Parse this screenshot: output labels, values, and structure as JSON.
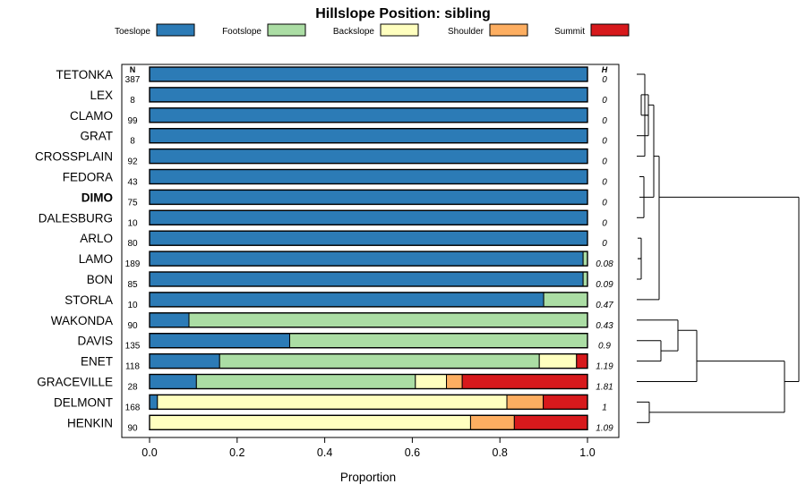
{
  "chart_data": {
    "type": "bar",
    "stacked": true,
    "orientation": "horizontal",
    "title": "Hillslope Position: sibling",
    "xlabel": "Proportion",
    "xlim": [
      0,
      1
    ],
    "xticks": [
      "0.0",
      "0.2",
      "0.4",
      "0.6",
      "0.8",
      "1.0"
    ],
    "n_header": "N",
    "h_header": "H",
    "legend": [
      {
        "name": "Toeslope",
        "color": "#2C7BB6"
      },
      {
        "name": "Footslope",
        "color": "#ABDDA4"
      },
      {
        "name": "Backslope",
        "color": "#FFFFBF"
      },
      {
        "name": "Shoulder",
        "color": "#FDAE61"
      },
      {
        "name": "Summit",
        "color": "#D7191C"
      }
    ],
    "rows": [
      {
        "label": "TETONKA",
        "n": "387",
        "h": "0",
        "bold": false,
        "values": [
          1,
          0,
          0,
          0,
          0
        ]
      },
      {
        "label": "LEX",
        "n": "8",
        "h": "0",
        "bold": false,
        "values": [
          1,
          0,
          0,
          0,
          0
        ]
      },
      {
        "label": "CLAMO",
        "n": "99",
        "h": "0",
        "bold": false,
        "values": [
          1,
          0,
          0,
          0,
          0
        ]
      },
      {
        "label": "GRAT",
        "n": "8",
        "h": "0",
        "bold": false,
        "values": [
          1,
          0,
          0,
          0,
          0
        ]
      },
      {
        "label": "CROSSPLAIN",
        "n": "92",
        "h": "0",
        "bold": false,
        "values": [
          1,
          0,
          0,
          0,
          0
        ]
      },
      {
        "label": "FEDORA",
        "n": "43",
        "h": "0",
        "bold": false,
        "values": [
          1,
          0,
          0,
          0,
          0
        ]
      },
      {
        "label": "DIMO",
        "n": "75",
        "h": "0",
        "bold": true,
        "values": [
          1,
          0,
          0,
          0,
          0
        ]
      },
      {
        "label": "DALESBURG",
        "n": "10",
        "h": "0",
        "bold": false,
        "values": [
          1,
          0,
          0,
          0,
          0
        ]
      },
      {
        "label": "ARLO",
        "n": "80",
        "h": "0",
        "bold": false,
        "values": [
          1,
          0,
          0,
          0,
          0
        ]
      },
      {
        "label": "LAMO",
        "n": "189",
        "h": "0.08",
        "bold": false,
        "values": [
          0.99,
          0.01,
          0,
          0,
          0
        ]
      },
      {
        "label": "BON",
        "n": "85",
        "h": "0.09",
        "bold": false,
        "values": [
          0.99,
          0.01,
          0,
          0,
          0
        ]
      },
      {
        "label": "STORLA",
        "n": "10",
        "h": "0.47",
        "bold": false,
        "values": [
          0.9,
          0.1,
          0,
          0,
          0
        ]
      },
      {
        "label": "WAKONDA",
        "n": "90",
        "h": "0.43",
        "bold": false,
        "values": [
          0.09,
          0.91,
          0,
          0,
          0
        ]
      },
      {
        "label": "DAVIS",
        "n": "135",
        "h": "0.9",
        "bold": false,
        "values": [
          0.32,
          0.68,
          0,
          0,
          0
        ]
      },
      {
        "label": "ENET",
        "n": "118",
        "h": "1.19",
        "bold": false,
        "values": [
          0.16,
          0.73,
          0.085,
          0,
          0.025
        ]
      },
      {
        "label": "GRACEVILLE",
        "n": "28",
        "h": "1.81",
        "bold": false,
        "values": [
          0.107,
          0.5,
          0.071,
          0.036,
          0.286
        ]
      },
      {
        "label": "DELMONT",
        "n": "168",
        "h": "1",
        "bold": false,
        "values": [
          0.018,
          0.0,
          0.798,
          0.083,
          0.101
        ]
      },
      {
        "label": "HENKIN",
        "n": "90",
        "h": "1.09",
        "bold": false,
        "values": [
          0,
          0,
          0.733,
          0.1,
          0.167
        ]
      }
    ]
  }
}
